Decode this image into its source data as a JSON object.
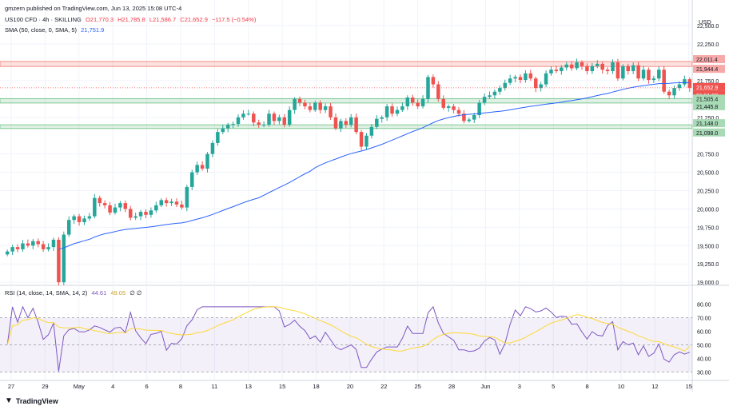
{
  "header": {
    "publisher": "gmzern published on TradingView.com, Jun 13, 2025 15:08 UTC-4",
    "symbol": "US100 CFD · 4h · SKILLING",
    "ohlc_o": "O21,770.3",
    "ohlc_h": "H21,785.8",
    "ohlc_l": "L21,586.7",
    "ohlc_c": "C21,652.9",
    "change": "−117.5 (−0.54%)",
    "sma_label": "SMA (50, close, 0, SMA, 5)",
    "sma_value": "21,751.9",
    "rsi_label": "RSI (14, close, 14, SMA, 14, 2)",
    "rsi_value": "44.61",
    "rsi_ma_value": "49.05",
    "rsi_extra": "∅ ∅"
  },
  "footer": {
    "brand": "TradingView"
  },
  "colors": {
    "up": "#26a69a",
    "down": "#ef5350",
    "sma": "#2962ff",
    "rsi": "#7e57c2",
    "rsi_ma": "#fdd835",
    "resistance": "#f28b82",
    "support": "#81c995"
  },
  "chart_data": {
    "type": "candlestick",
    "currency": "USD",
    "price_axis_ticks": [
      "22,500.0",
      "22,250.0",
      "21,750.0",
      "21,500.0",
      "21,250.0",
      "20,750.0",
      "20,500.0",
      "20,250.0",
      "20,000.0",
      "19,750.0",
      "19,500.0",
      "19,250.0",
      "19,000.0"
    ],
    "price_ylim": [
      18980,
      22720
    ],
    "price_tick_values": [
      22500,
      22250,
      21750,
      21500,
      21250,
      20750,
      20500,
      20250,
      20000,
      19750,
      19500,
      19250,
      19000
    ],
    "time_axis": [
      "27",
      "29",
      "May",
      "4",
      "6",
      "8",
      "11",
      "13",
      "15",
      "18",
      "20",
      "22",
      "25",
      "28",
      "Jun",
      "3",
      "5",
      "8",
      "10",
      "12",
      "15"
    ],
    "levels": [
      {
        "label": "22,011.4",
        "value": 22011.4,
        "kind": "resistance"
      },
      {
        "label": "21,944.4",
        "value": 21944.4,
        "kind": "resistance"
      },
      {
        "label": "21,505.4",
        "value": 21505.4,
        "kind": "support"
      },
      {
        "label": "21,445.8",
        "value": 21445.8,
        "kind": "support"
      },
      {
        "label": "21,148.0",
        "value": 21148.0,
        "kind": "support"
      },
      {
        "label": "21,098.0",
        "value": 21098.0,
        "kind": "support"
      }
    ],
    "last_price": {
      "label": "21,652.9",
      "countdown": "01:51:08",
      "value": 21652.9
    },
    "closes": [
      19420,
      19480,
      19450,
      19530,
      19500,
      19560,
      19520,
      19450,
      19480,
      19580,
      19000,
      19650,
      19850,
      19900,
      19820,
      19870,
      19900,
      20150,
      20080,
      20050,
      19950,
      20020,
      20080,
      20000,
      19880,
      19900,
      19960,
      19920,
      19980,
      20050,
      20120,
      20080,
      20100,
      20060,
      20020,
      20300,
      20500,
      20600,
      20550,
      20750,
      20900,
      21050,
      21100,
      21150,
      21160,
      21250,
      21300,
      21300,
      21180,
      21150,
      21150,
      21300,
      21200,
      21250,
      21150,
      21350,
      21500,
      21450,
      21400,
      21350,
      21450,
      21350,
      21400,
      21250,
      21100,
      21200,
      21150,
      21250,
      21050,
      20850,
      21000,
      21120,
      21230,
      21250,
      21400,
      21300,
      21350,
      21400,
      21520,
      21450,
      21400,
      21500,
      21800,
      21700,
      21500,
      21380,
      21400,
      21350,
      21300,
      21200,
      21220,
      21280,
      21450,
      21530,
      21550,
      21600,
      21650,
      21720,
      21780,
      21800,
      21760,
      21850,
      21780,
      21650,
      21700,
      21850,
      21900,
      21880,
      21930,
      21970,
      21920,
      22000,
      21950,
      21880,
      21950,
      21980,
      21900,
      21880,
      22000,
      21780,
      21950,
      21880,
      21960,
      21780,
      21900,
      21760,
      21780,
      21900,
      21600,
      21550,
      21650,
      21700,
      21770,
      21652.9
    ],
    "rsi": {
      "label": "RSI",
      "ylim": [
        25,
        85
      ],
      "ticks": [
        "80.00",
        "70.00",
        "60.00",
        "50.00",
        "40.00",
        "30.00"
      ],
      "tick_values": [
        80,
        70,
        60,
        50,
        40,
        30
      ],
      "upper_band": 70,
      "lower_band": 30,
      "mid": 50,
      "last": 44.61,
      "ma_last": 49.05
    }
  }
}
